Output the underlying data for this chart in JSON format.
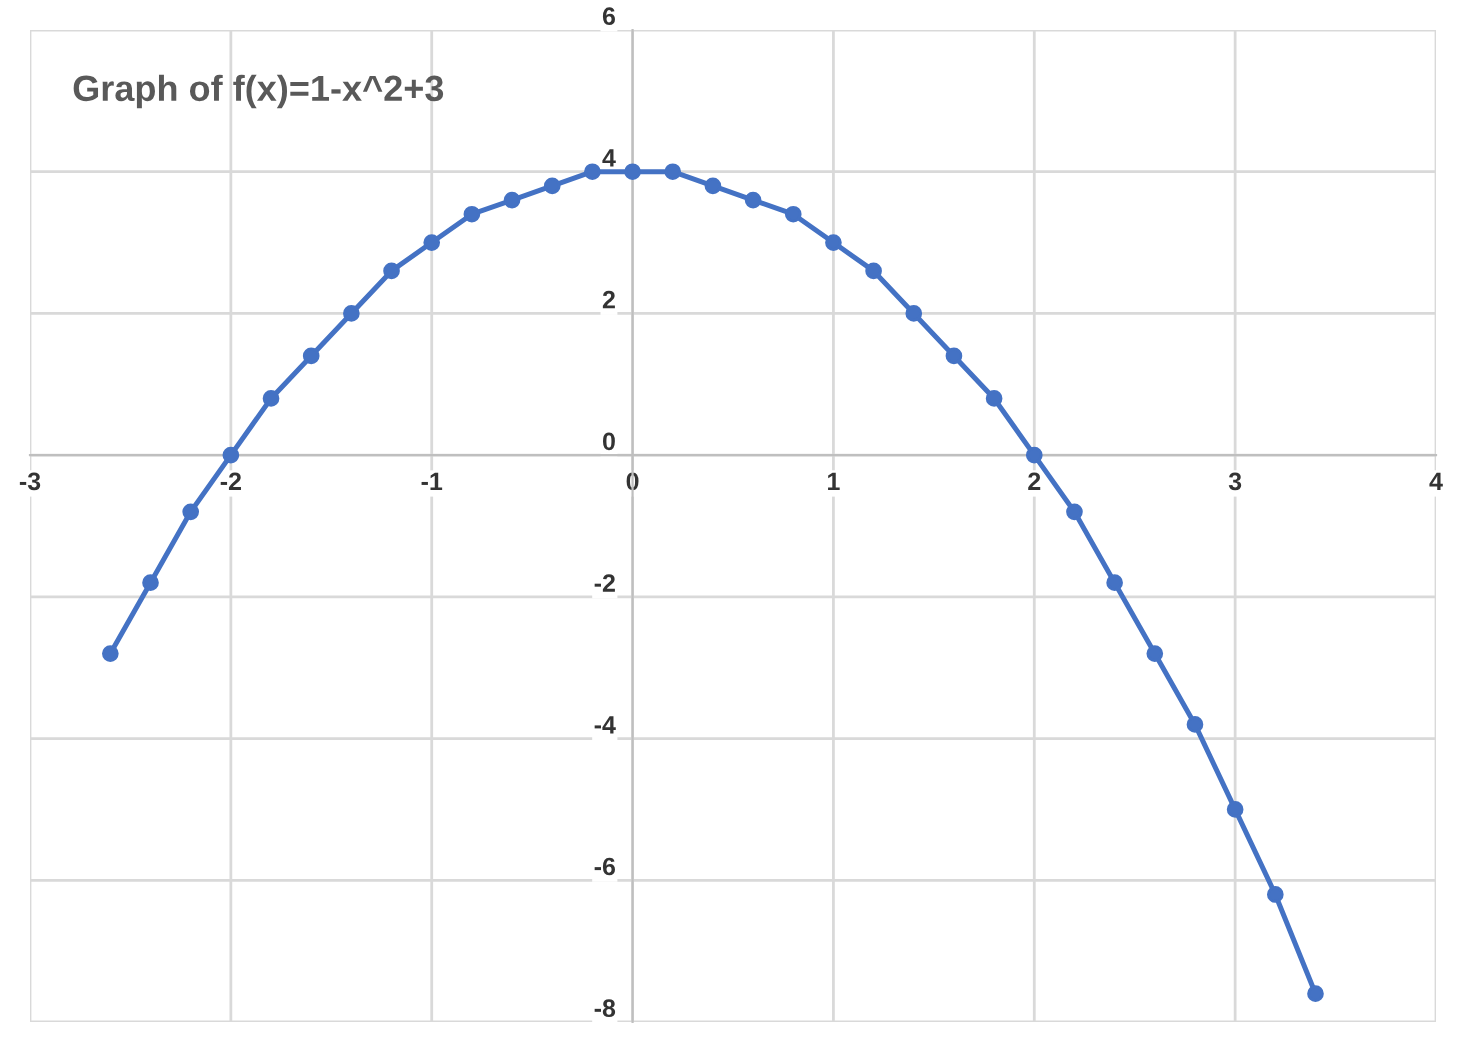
{
  "chart_data": {
    "type": "line",
    "title": "Graph of f(x)=1-x^2+3",
    "x": [
      -2.6,
      -2.4,
      -2.2,
      -2.0,
      -1.8,
      -1.6,
      -1.4,
      -1.2,
      -1.0,
      -0.8,
      -0.6,
      -0.4,
      -0.2,
      0,
      0.2,
      0.4,
      0.6,
      0.8,
      1.0,
      1.2,
      1.4,
      1.6,
      1.8,
      2.0,
      2.2,
      2.4,
      2.6,
      2.8,
      3.0,
      3.2,
      3.4
    ],
    "series": [
      {
        "color": "#4472c4",
        "values": [
          -2.8,
          -1.8,
          -0.8,
          0,
          0.8,
          1.4,
          2.0,
          2.6,
          3.0,
          3.4,
          3.6,
          3.8,
          4.0,
          4.0,
          4.0,
          3.8,
          3.6,
          3.4,
          3.0,
          2.6,
          2.0,
          1.4,
          0.8,
          0,
          -0.8,
          -1.8,
          -2.8,
          -3.8,
          -5.0,
          -6.2,
          -7.6
        ]
      }
    ],
    "xlim": [
      -3,
      4
    ],
    "xticks": [
      -3,
      -2,
      -1,
      0,
      1,
      2,
      3,
      4
    ],
    "ylim": [
      -8,
      6
    ],
    "yticks": [
      -8,
      -6,
      -4,
      -2,
      0,
      2,
      4,
      6
    ],
    "grid": true,
    "marker": "circle",
    "line_style": "solid"
  }
}
